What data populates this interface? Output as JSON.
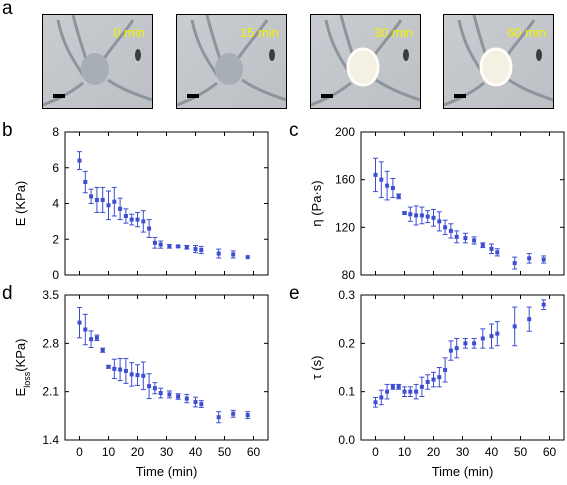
{
  "panels": {
    "a": "a",
    "b": "b",
    "c": "c",
    "d": "d",
    "e": "e"
  },
  "images": [
    {
      "time_label": "0 min",
      "highlight": false
    },
    {
      "time_label": "15 min",
      "highlight": false
    },
    {
      "time_label": "30 min",
      "highlight": true
    },
    {
      "time_label": "60 min",
      "highlight": true
    }
  ],
  "colors": {
    "series": "#3d4fd0",
    "time_text": "#f2f200"
  },
  "chart_data": [
    {
      "id": "b",
      "type": "scatter",
      "xlabel": "",
      "ylabel": "E (KPa)",
      "xlim": [
        -5,
        65
      ],
      "ylim": [
        0,
        8
      ],
      "yticks": [
        0,
        2,
        4,
        6,
        8
      ],
      "xticks": [
        0,
        10,
        20,
        30,
        40,
        50,
        60
      ],
      "show_xtick_labels": false,
      "x": [
        0,
        2,
        4,
        6,
        8,
        10,
        12,
        14,
        16,
        18,
        20,
        22,
        24,
        26,
        28,
        31,
        34,
        37,
        40,
        42,
        48,
        53,
        58
      ],
      "y": [
        6.4,
        5.2,
        4.4,
        4.2,
        4.2,
        3.9,
        4.1,
        3.7,
        3.3,
        3.1,
        3.1,
        3.0,
        2.6,
        1.8,
        1.7,
        1.6,
        1.6,
        1.55,
        1.45,
        1.4,
        1.2,
        1.15,
        1.0
      ],
      "err": [
        0.5,
        0.6,
        0.4,
        0.7,
        0.7,
        0.8,
        0.8,
        0.6,
        0.4,
        0.3,
        0.4,
        0.6,
        0.5,
        0.3,
        0.2,
        0.1,
        0.05,
        0.1,
        0.2,
        0.2,
        0.25,
        0.2,
        0.0
      ]
    },
    {
      "id": "c",
      "type": "scatter",
      "xlabel": "",
      "ylabel": "η (Pa·s)",
      "xlim": [
        -5,
        65
      ],
      "ylim": [
        80,
        200
      ],
      "yticks": [
        80,
        120,
        160,
        200
      ],
      "xticks": [
        0,
        10,
        20,
        30,
        40,
        50,
        60
      ],
      "show_xtick_labels": false,
      "x": [
        0,
        2,
        4,
        6,
        8,
        10,
        12,
        14,
        16,
        18,
        20,
        22,
        24,
        26,
        28,
        31,
        34,
        37,
        40,
        42,
        48,
        53,
        58
      ],
      "y": [
        164,
        160,
        155,
        153,
        146,
        132,
        131,
        130,
        130,
        129,
        128,
        125,
        120,
        117,
        112,
        111,
        109,
        105,
        102,
        99,
        90,
        94,
        93
      ],
      "err": [
        14,
        15,
        12,
        8,
        2,
        1,
        6,
        8,
        7,
        5,
        7,
        8,
        6,
        6,
        5,
        4,
        3,
        2,
        4,
        3,
        5,
        4,
        3
      ]
    },
    {
      "id": "d",
      "type": "scatter",
      "xlabel": "Time (min)",
      "ylabel": "E",
      "ylabel_sub": "loss",
      "ylabel_suffix": "(KPa)",
      "xlim": [
        -5,
        65
      ],
      "ylim": [
        1.4,
        3.5
      ],
      "yticks": [
        1.4,
        2.1,
        2.8,
        3.5
      ],
      "ytick_labels": [
        "1.4",
        "2.1",
        "2.8",
        "3.5"
      ],
      "xticks": [
        0,
        10,
        20,
        30,
        40,
        50,
        60
      ],
      "show_xtick_labels": true,
      "x": [
        0,
        2,
        4,
        6,
        8,
        10,
        12,
        14,
        16,
        18,
        20,
        22,
        24,
        26,
        28,
        31,
        34,
        37,
        40,
        42,
        48,
        53,
        58
      ],
      "y": [
        3.1,
        3.0,
        2.86,
        2.88,
        2.7,
        2.46,
        2.43,
        2.42,
        2.4,
        2.35,
        2.34,
        2.33,
        2.18,
        2.15,
        2.08,
        2.06,
        2.03,
        2.0,
        1.95,
        1.92,
        1.73,
        1.78,
        1.76
      ],
      "err": [
        0.22,
        0.22,
        0.12,
        0.04,
        0.03,
        0.02,
        0.14,
        0.16,
        0.18,
        0.17,
        0.15,
        0.2,
        0.18,
        0.08,
        0.07,
        0.05,
        0.04,
        0.06,
        0.07,
        0.05,
        0.08,
        0.05,
        0.05
      ]
    },
    {
      "id": "e",
      "type": "scatter",
      "xlabel": "Time (min)",
      "ylabel": "τ (s)",
      "xlim": [
        -5,
        65
      ],
      "ylim": [
        0,
        0.3
      ],
      "yticks": [
        0.0,
        0.1,
        0.2,
        0.3
      ],
      "ytick_labels": [
        "0.0",
        "0.1",
        "0.2",
        "0.3"
      ],
      "xticks": [
        0,
        10,
        20,
        30,
        40,
        50,
        60
      ],
      "show_xtick_labels": true,
      "x": [
        0,
        2,
        4,
        6,
        8,
        10,
        12,
        14,
        16,
        18,
        20,
        22,
        24,
        26,
        28,
        31,
        34,
        37,
        40,
        42,
        48,
        53,
        58
      ],
      "y": [
        0.078,
        0.088,
        0.1,
        0.11,
        0.11,
        0.1,
        0.1,
        0.1,
        0.11,
        0.12,
        0.125,
        0.13,
        0.145,
        0.185,
        0.19,
        0.2,
        0.2,
        0.21,
        0.215,
        0.22,
        0.235,
        0.25,
        0.28
      ],
      "err": [
        0.01,
        0.015,
        0.015,
        0.005,
        0.005,
        0.01,
        0.01,
        0.015,
        0.02,
        0.015,
        0.015,
        0.02,
        0.025,
        0.02,
        0.02,
        0.01,
        0.01,
        0.02,
        0.025,
        0.025,
        0.04,
        0.025,
        0.01
      ]
    }
  ]
}
